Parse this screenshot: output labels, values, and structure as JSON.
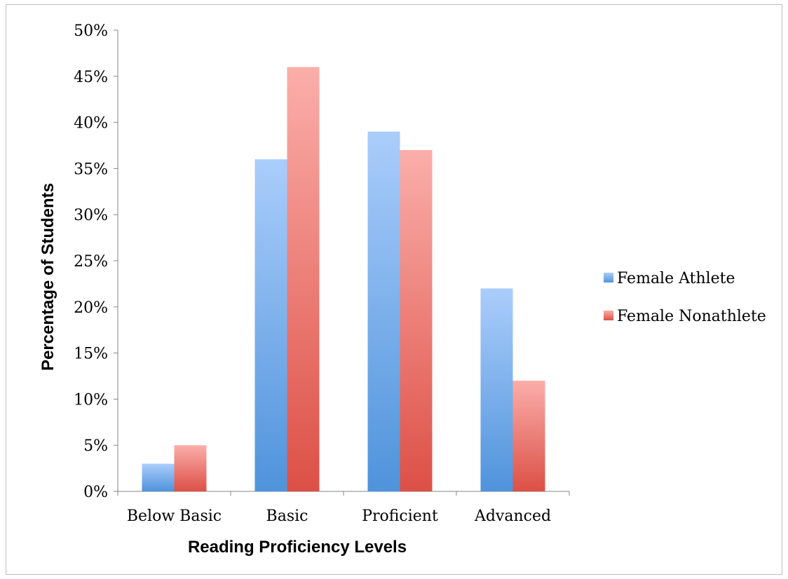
{
  "chart_data": {
    "type": "bar",
    "title": "",
    "xlabel": "Reading Proficiency Levels",
    "ylabel": "Percentage of Students",
    "categories": [
      "Below Basic",
      "Basic",
      "Proficient",
      "Advanced"
    ],
    "series": [
      {
        "name": "Female Athlete",
        "values": [
          3,
          36,
          39,
          22
        ],
        "color_top": "#aacdfb",
        "color_bottom": "#4f93db"
      },
      {
        "name": "Female Nonathlete",
        "values": [
          5,
          46,
          37,
          12
        ],
        "color_top": "#fbaeaa",
        "color_bottom": "#dc5046"
      }
    ],
    "ylim": [
      0,
      50
    ],
    "yticks": [
      0,
      5,
      10,
      15,
      20,
      25,
      30,
      35,
      40,
      45,
      50
    ],
    "ytick_labels": [
      "0%",
      "5%",
      "10%",
      "15%",
      "20%",
      "25%",
      "30%",
      "35%",
      "40%",
      "45%",
      "50%"
    ],
    "grid": false,
    "legend_position": "right"
  }
}
